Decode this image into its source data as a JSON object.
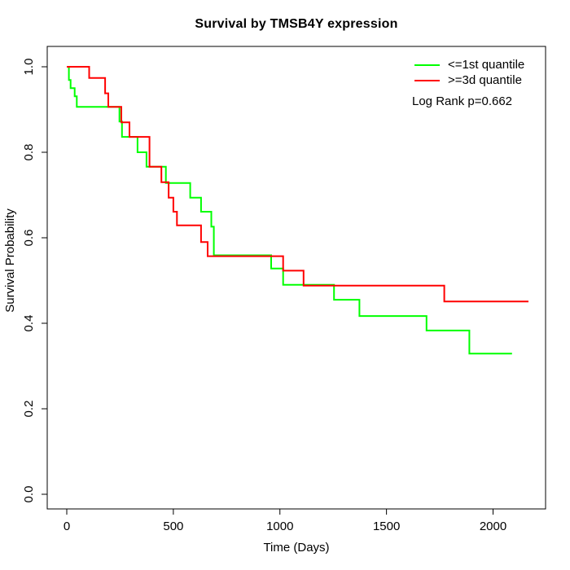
{
  "chart_data": {
    "type": "line",
    "subtype": "kaplan_meier_step",
    "title": "Survival by TMSB4Y expression",
    "xlabel": "Time (Days)",
    "ylabel": "Survival Probability",
    "xlim": [
      -90,
      2250
    ],
    "ylim": [
      0.0,
      1.0
    ],
    "x_ticks": [
      0,
      500,
      1000,
      1500,
      2000
    ],
    "x_tick_labels": [
      "0",
      "500",
      "1000",
      "1500",
      "2000"
    ],
    "y_ticks": [
      0.0,
      0.2,
      0.4,
      0.6,
      0.8,
      1.0
    ],
    "y_tick_labels": [
      "0.0",
      "0.2",
      "0.4",
      "0.6",
      "0.8",
      "1.0"
    ],
    "grid": false,
    "legend_position": "top-right",
    "annotation": "Log Rank p=0.662",
    "axis_color": "#000000",
    "background_color": "#FFFFFF",
    "series": [
      {
        "id": "curve-1st-quantile",
        "name": "<=1st quantile",
        "color": "#00FF00",
        "steps": [
          [
            0,
            1.0
          ],
          [
            10,
            0.969
          ],
          [
            18,
            0.95
          ],
          [
            37,
            0.931
          ],
          [
            47,
            0.906
          ],
          [
            247,
            0.872
          ],
          [
            259,
            0.836
          ],
          [
            332,
            0.8
          ],
          [
            374,
            0.766
          ],
          [
            465,
            0.728
          ],
          [
            579,
            0.694
          ],
          [
            630,
            0.661
          ],
          [
            678,
            0.626
          ],
          [
            690,
            0.559
          ],
          [
            959,
            0.528
          ],
          [
            1015,
            0.49
          ],
          [
            1254,
            0.455
          ],
          [
            1373,
            0.417
          ],
          [
            1688,
            0.383
          ],
          [
            1889,
            0.329
          ]
        ],
        "end_time": 2089
      },
      {
        "id": "curve-3d-quantile",
        "name": ">=3d quantile",
        "color": "#FF0000",
        "steps": [
          [
            0,
            1.0
          ],
          [
            105,
            0.974
          ],
          [
            180,
            0.938
          ],
          [
            195,
            0.906
          ],
          [
            256,
            0.87
          ],
          [
            294,
            0.836
          ],
          [
            388,
            0.766
          ],
          [
            444,
            0.73
          ],
          [
            478,
            0.694
          ],
          [
            500,
            0.661
          ],
          [
            517,
            0.629
          ],
          [
            630,
            0.59
          ],
          [
            661,
            0.557
          ],
          [
            1015,
            0.523
          ],
          [
            1111,
            0.488
          ],
          [
            1771,
            0.451
          ]
        ],
        "end_time": 2166
      }
    ]
  }
}
